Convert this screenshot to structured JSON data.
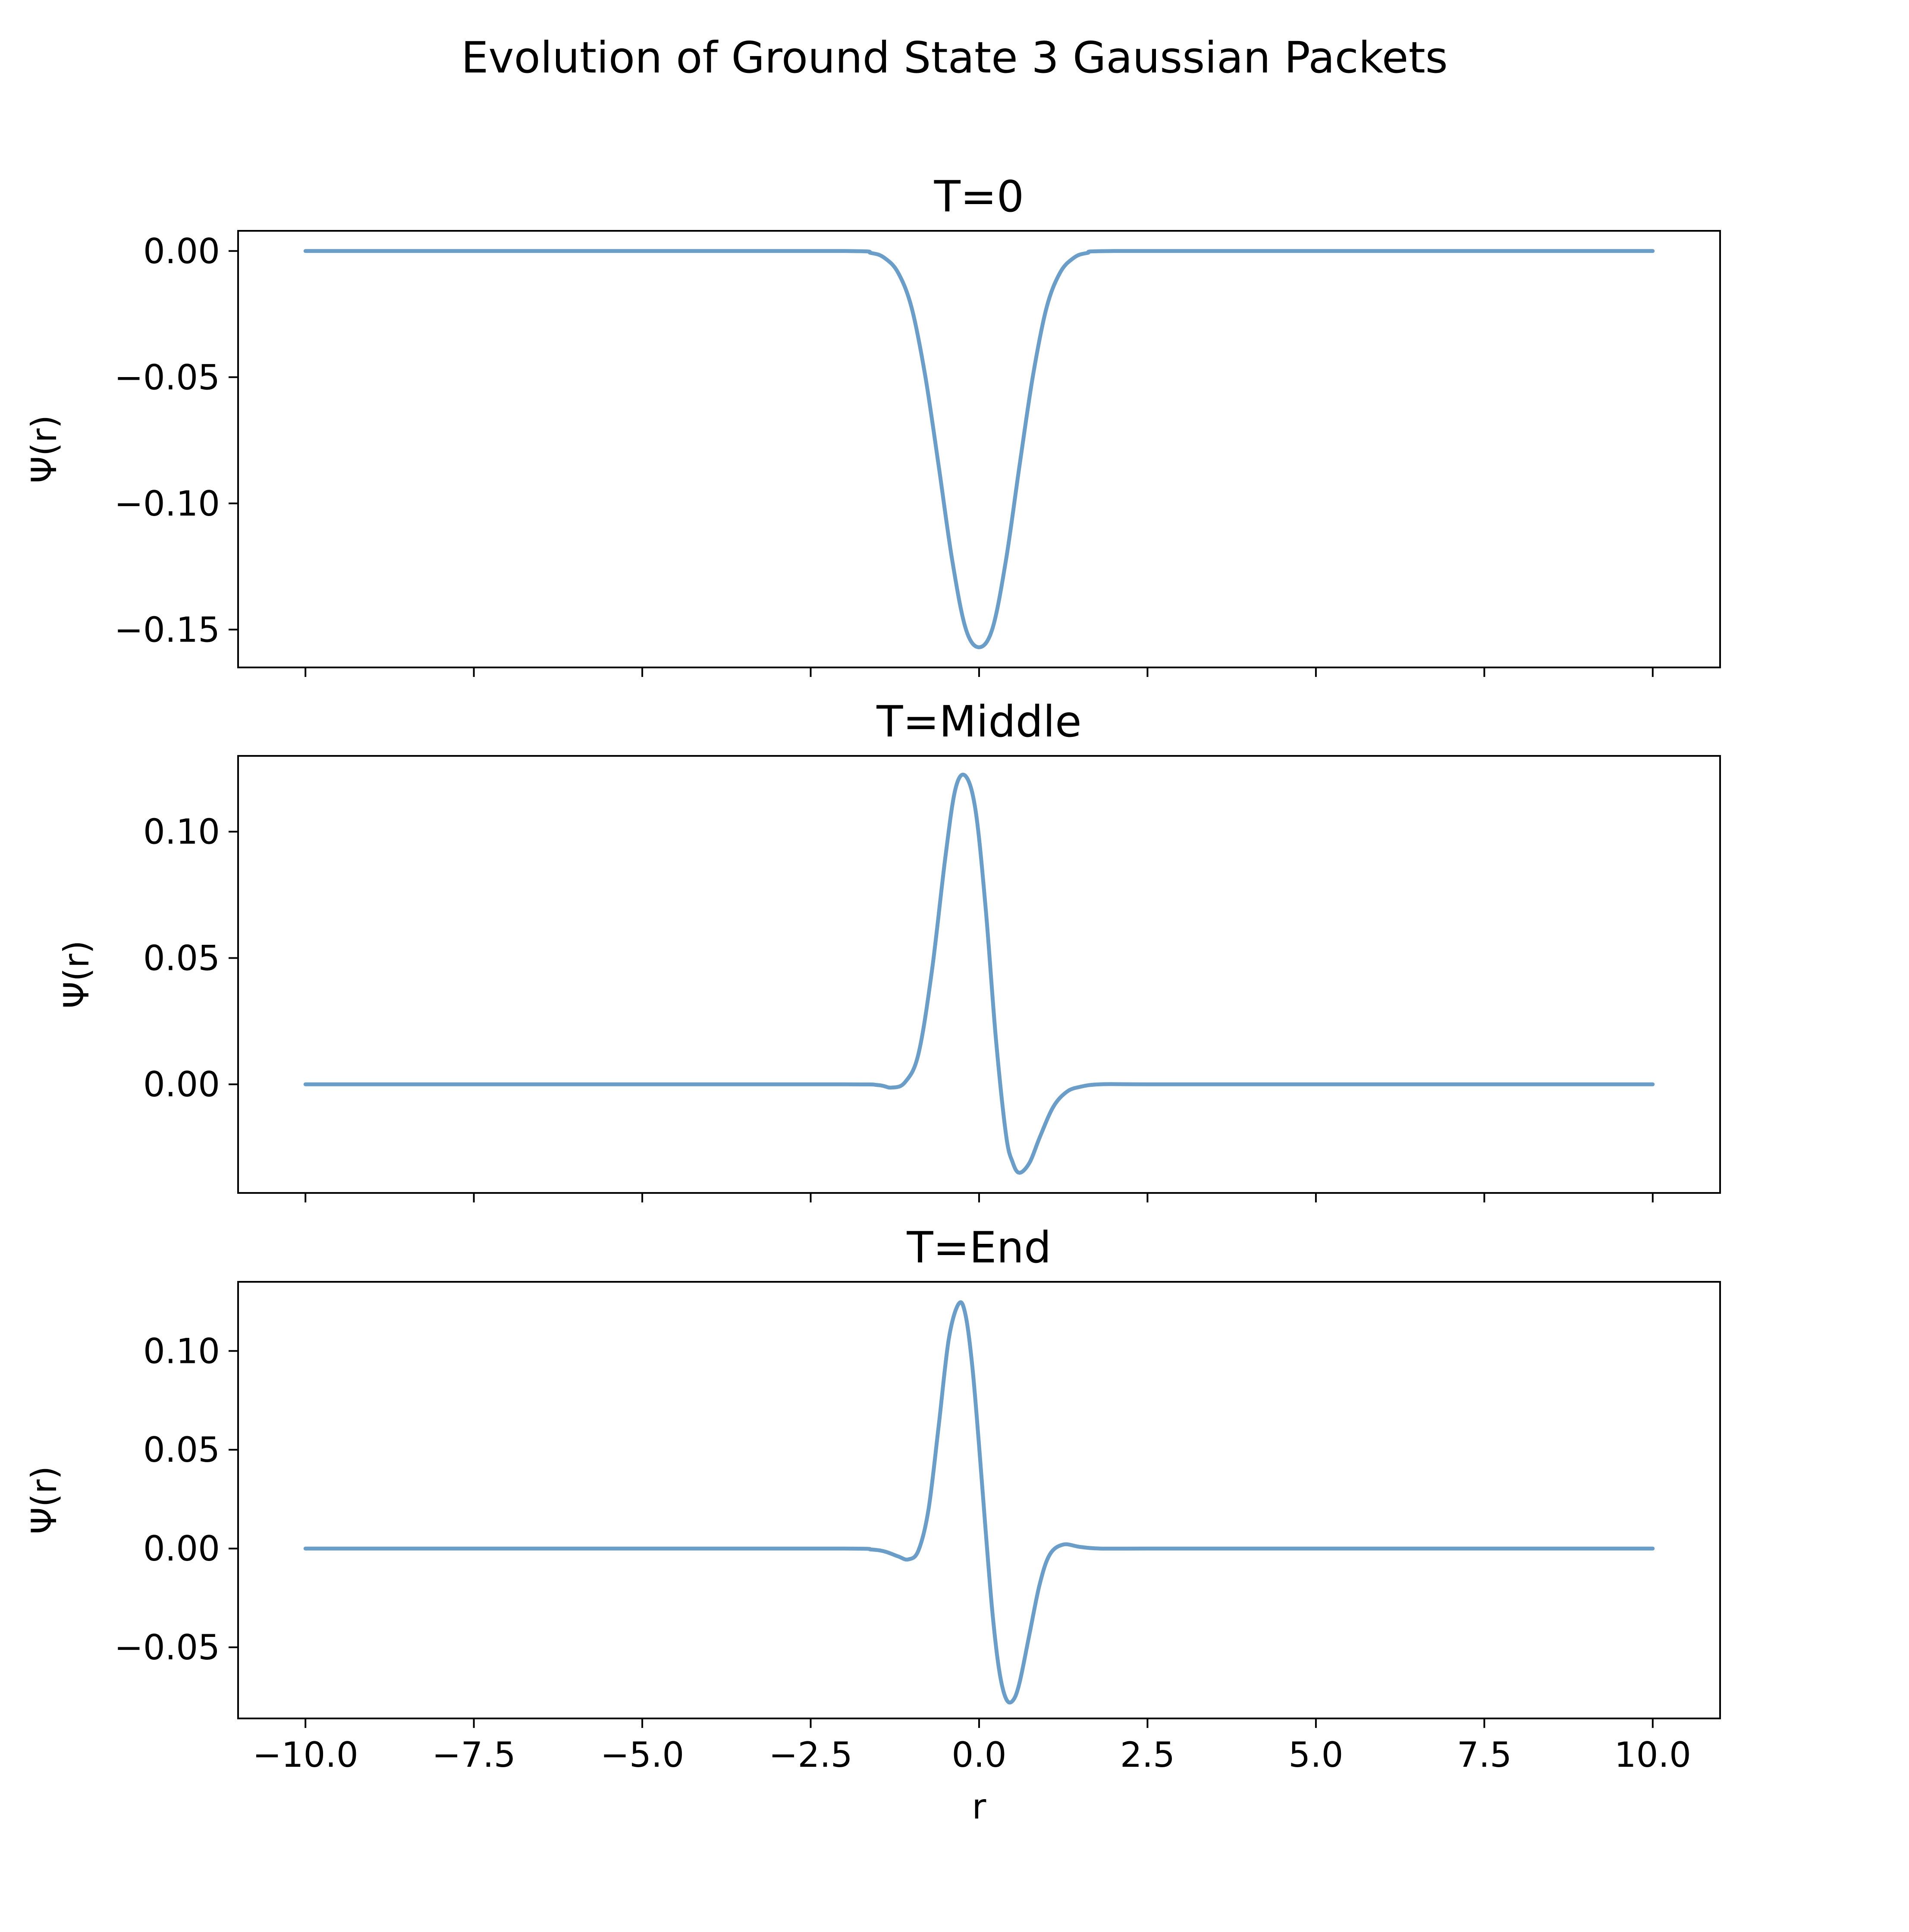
{
  "chart_data": {
    "type": "line",
    "title": "Evolution of Ground State 3 Gaussian Packets",
    "line_color": "#6a9ec9",
    "xlabel": "r",
    "xlim": [
      -11.0,
      11.0
    ],
    "xticks": [
      -10.0,
      -7.5,
      -5.0,
      -2.5,
      0.0,
      2.5,
      5.0,
      7.5,
      10.0
    ],
    "xtick_labels": [
      "−10.0",
      "−7.5",
      "−5.0",
      "−2.5",
      "0.0",
      "2.5",
      "5.0",
      "7.5",
      "10.0"
    ],
    "shared_x": true,
    "subplots": [
      {
        "title": "T=0",
        "ylabel": "Ψ(r)",
        "ylim": [
          -0.165,
          0.008
        ],
        "yticks": [
          0.0,
          -0.05,
          -0.1,
          -0.15
        ],
        "ytick_labels": [
          "0.00",
          "−0.05",
          "−0.10",
          "−0.15"
        ],
        "x": [
          -10.0,
          -5.0,
          -2.0,
          -1.6,
          -1.4,
          -1.2,
          -1.0,
          -0.8,
          -0.6,
          -0.4,
          -0.2,
          0.0,
          0.2,
          0.4,
          0.6,
          0.8,
          1.0,
          1.2,
          1.4,
          1.6,
          2.0,
          5.0,
          10.0
        ],
        "y": [
          0.0,
          0.0,
          0.0,
          -0.0008,
          -0.0028,
          -0.0087,
          -0.0226,
          -0.0494,
          -0.0851,
          -0.1223,
          -0.1495,
          -0.157,
          -0.1495,
          -0.1223,
          -0.0851,
          -0.0494,
          -0.0226,
          -0.0087,
          -0.0028,
          -0.0008,
          0.0,
          0.0,
          0.0
        ]
      },
      {
        "title": "T=Middle",
        "ylabel": "Ψ(r)",
        "ylim": [
          -0.043,
          0.13
        ],
        "yticks": [
          0.1,
          0.05,
          0.0
        ],
        "yticks_note": "",
        "ytick_labels": [
          "0.10",
          "0.05",
          "0.00"
        ],
        "x": [
          -10.0,
          -5.0,
          -2.0,
          -1.5,
          -1.3,
          -1.1,
          -0.9,
          -0.7,
          -0.5,
          -0.35,
          -0.2,
          -0.05,
          0.1,
          0.25,
          0.4,
          0.5,
          0.6,
          0.75,
          0.9,
          1.1,
          1.3,
          1.5,
          1.8,
          2.5,
          5.0,
          10.0
        ],
        "y": [
          0.0,
          0.0,
          0.0,
          -0.0003,
          -0.0013,
          0.0008,
          0.012,
          0.045,
          0.09,
          0.117,
          0.122,
          0.108,
          0.069,
          0.018,
          -0.02,
          -0.031,
          -0.035,
          -0.031,
          -0.021,
          -0.009,
          -0.003,
          -0.001,
          0.0,
          0.0,
          0.0,
          0.0
        ]
      },
      {
        "title": "T=End",
        "ylabel": "Ψ(r)",
        "ylim": [
          -0.086,
          0.135
        ],
        "yticks": [
          0.1,
          0.05,
          0.0,
          -0.05
        ],
        "ytick_labels": [
          "0.10",
          "0.05",
          "0.00",
          "−0.05"
        ],
        "x": [
          -10.0,
          -5.0,
          -2.0,
          -1.6,
          -1.4,
          -1.2,
          -1.05,
          -0.9,
          -0.75,
          -0.6,
          -0.45,
          -0.3,
          -0.2,
          -0.1,
          0.0,
          0.1,
          0.2,
          0.3,
          0.4,
          0.5,
          0.6,
          0.75,
          0.9,
          1.05,
          1.25,
          1.5,
          1.8,
          2.5,
          5.0,
          10.0
        ],
        "y": [
          0.0,
          0.0,
          0.0,
          -0.0005,
          -0.0015,
          -0.004,
          -0.0055,
          -0.001,
          0.02,
          0.062,
          0.106,
          0.124,
          0.118,
          0.092,
          0.052,
          0.008,
          -0.033,
          -0.062,
          -0.076,
          -0.077,
          -0.068,
          -0.043,
          -0.018,
          -0.003,
          0.002,
          0.0008,
          0.0,
          0.0,
          0.0,
          0.0
        ]
      }
    ]
  }
}
